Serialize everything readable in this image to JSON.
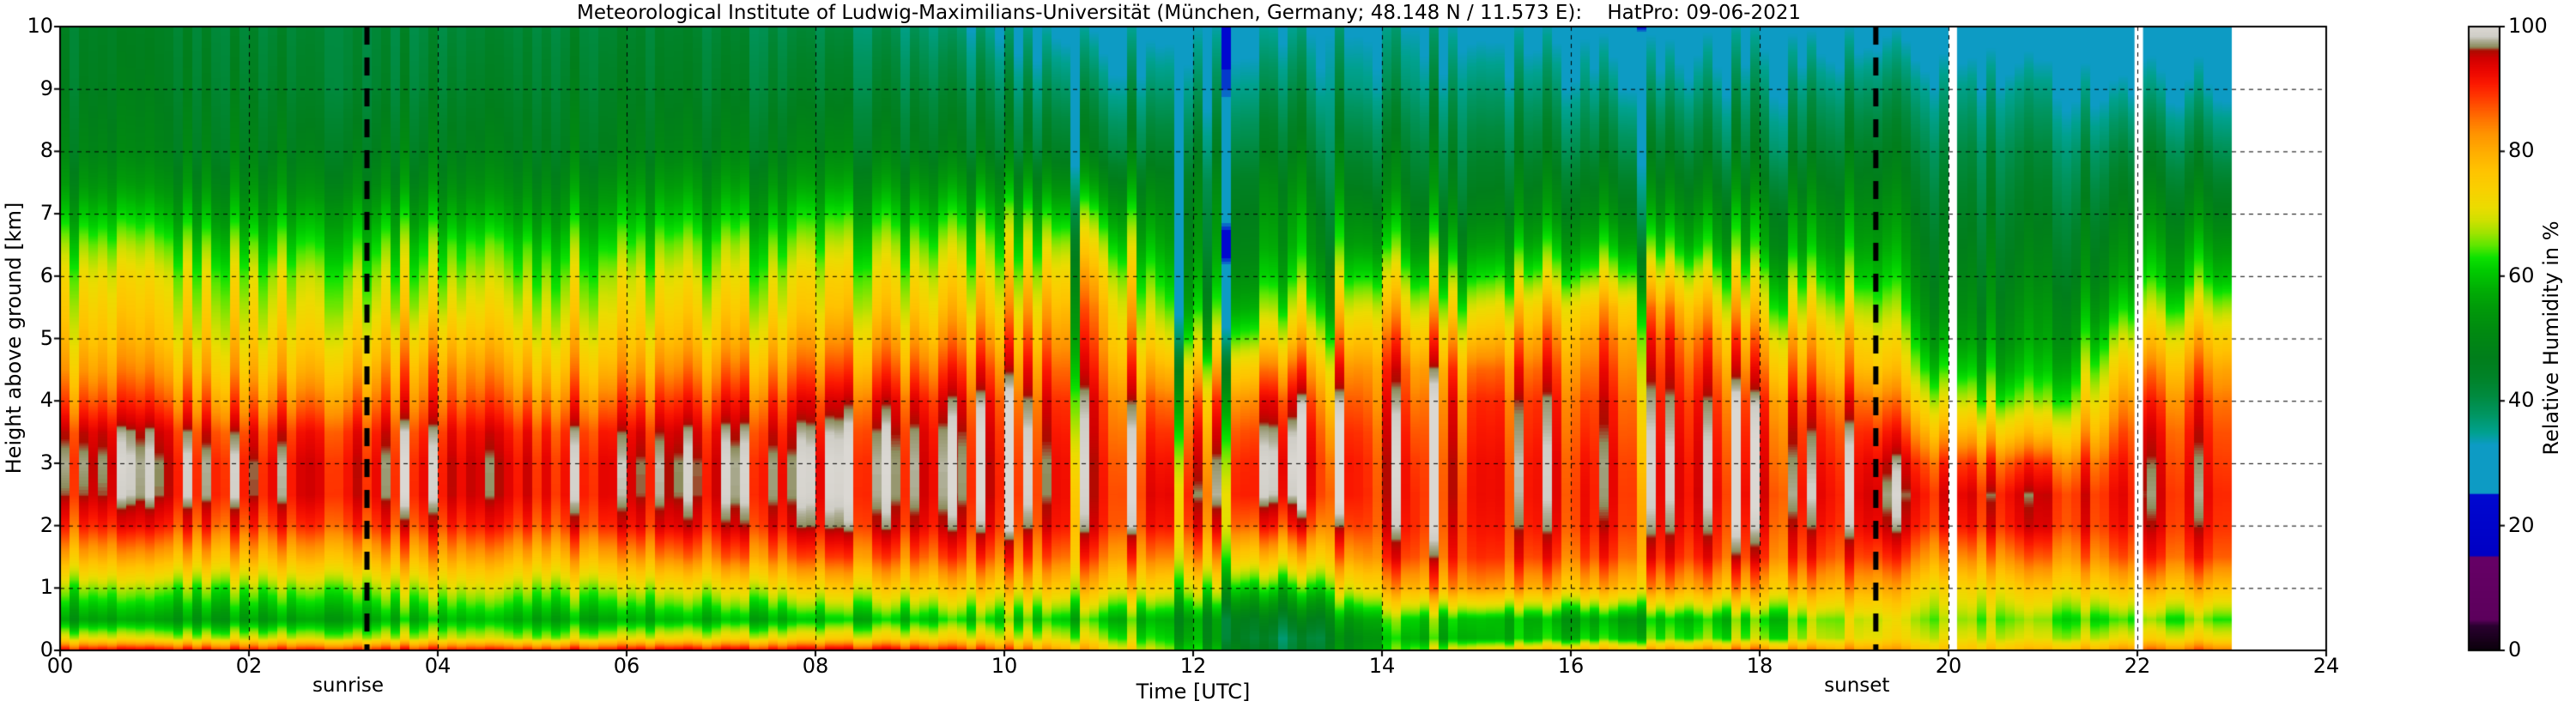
{
  "chart_data": {
    "type": "heatmap",
    "title": "Meteorological Institute of Ludwig-Maximilians-Universität (München, Germany; 48.148 N / 11.573 E):    HatPro: 09-06-2021",
    "xlabel": "Time [UTC]",
    "ylabel": "Height above ground [km]",
    "colorbar_label": "Relative Humidity in %",
    "xlim": [
      0,
      24
    ],
    "ylim": [
      0,
      10
    ],
    "clim": [
      0,
      100
    ],
    "grid": "dashed-black-on-top",
    "legend_position": "right-colorbar",
    "x_ticks": {
      "values": [
        0,
        2,
        4,
        6,
        8,
        10,
        12,
        14,
        16,
        18,
        20,
        22,
        24
      ],
      "labels": [
        "00",
        "02",
        "04",
        "06",
        "08",
        "10",
        "12",
        "14",
        "16",
        "18",
        "20",
        "22",
        "24"
      ]
    },
    "y_ticks": {
      "values": [
        0,
        1,
        2,
        3,
        4,
        5,
        6,
        7,
        8,
        9,
        10
      ],
      "labels": [
        "0",
        "1",
        "2",
        "3",
        "4",
        "5",
        "6",
        "7",
        "8",
        "9",
        "10"
      ]
    },
    "colorbar_ticks": {
      "values": [
        0,
        20,
        40,
        60,
        80,
        100
      ],
      "labels": [
        "0",
        "20",
        "40",
        "60",
        "80",
        "100"
      ]
    },
    "annotations": [
      {
        "label": "sunrise",
        "hour": 3.25
      },
      {
        "label": "sunset",
        "hour": 19.23
      }
    ],
    "data_gaps_hours": [
      [
        20.0,
        20.09
      ],
      [
        21.97,
        22.06
      ]
    ],
    "data_end_hour": 23.0,
    "colormap_stops": [
      [
        0,
        "#0a000a"
      ],
      [
        4,
        "#2a0030"
      ],
      [
        5,
        "#5c005c"
      ],
      [
        15,
        "#660066"
      ],
      [
        15.2,
        "#0000c4"
      ],
      [
        25,
        "#0008d0"
      ],
      [
        25.3,
        "#0d9bc4"
      ],
      [
        33,
        "#0d9bc4"
      ],
      [
        35,
        "#00a18f"
      ],
      [
        38,
        "#009560"
      ],
      [
        41,
        "#008a3e"
      ],
      [
        44,
        "#008227"
      ],
      [
        47,
        "#007e1b"
      ],
      [
        51,
        "#008911"
      ],
      [
        55,
        "#009a09"
      ],
      [
        58,
        "#00af04"
      ],
      [
        61,
        "#00cc00"
      ],
      [
        63,
        "#0ce200"
      ],
      [
        65,
        "#5fe600"
      ],
      [
        67,
        "#a0e300"
      ],
      [
        69,
        "#cfe000"
      ],
      [
        71,
        "#ebdc00"
      ],
      [
        74,
        "#f9d000"
      ],
      [
        77,
        "#ffc300"
      ],
      [
        80,
        "#ffad00"
      ],
      [
        83,
        "#ff9200"
      ],
      [
        85,
        "#ff7600"
      ],
      [
        87,
        "#ff5600"
      ],
      [
        89,
        "#ff3500"
      ],
      [
        91,
        "#fb1800"
      ],
      [
        93,
        "#ea0600"
      ],
      [
        95,
        "#d00000"
      ],
      [
        96.2,
        "#ab0c00"
      ],
      [
        96.8,
        "#8d8d5e"
      ],
      [
        97.8,
        "#aeae96"
      ],
      [
        98.4,
        "#cfcdc6"
      ],
      [
        100,
        "#dbd8d3"
      ]
    ],
    "hours": [
      0,
      1,
      2,
      3,
      4,
      5,
      6,
      7,
      8,
      9,
      10,
      11,
      12,
      13,
      14,
      15,
      16,
      17,
      18,
      19,
      20,
      21,
      22,
      23
    ],
    "heights_km": [
      0,
      0.2,
      0.5,
      1,
      1.5,
      2,
      2.5,
      3,
      3.5,
      4,
      4.5,
      5,
      5.5,
      6,
      6.5,
      7,
      7.5,
      8,
      9,
      10
    ],
    "rh_percent_by_hour": [
      [
        93,
        70,
        55,
        65,
        78,
        88,
        93,
        94,
        92,
        85,
        79,
        75,
        72,
        69,
        64,
        58,
        52,
        48,
        45,
        44
      ],
      [
        93,
        68,
        54,
        64,
        78,
        89,
        94,
        94,
        92,
        85,
        79,
        74,
        71,
        68,
        63,
        57,
        51,
        47,
        45,
        44
      ],
      [
        93,
        70,
        56,
        66,
        79,
        89,
        94,
        94,
        91,
        84,
        78,
        74,
        71,
        68,
        63,
        57,
        52,
        48,
        45,
        43
      ],
      [
        93,
        69,
        57,
        67,
        80,
        90,
        94,
        94,
        92,
        86,
        80,
        75,
        71,
        68,
        63,
        58,
        52,
        48,
        44,
        43
      ],
      [
        93,
        70,
        60,
        70,
        82,
        91,
        95,
        95,
        93,
        88,
        84,
        78,
        72,
        68,
        64,
        58,
        52,
        48,
        44,
        42
      ],
      [
        93,
        68,
        58,
        68,
        80,
        90,
        94,
        94,
        92,
        86,
        80,
        75,
        71,
        67,
        63,
        57,
        52,
        48,
        45,
        43
      ],
      [
        94,
        70,
        57,
        68,
        81,
        91,
        94,
        94,
        92,
        86,
        80,
        75,
        71,
        68,
        63,
        58,
        53,
        48,
        45,
        43
      ],
      [
        94,
        71,
        58,
        70,
        84,
        92,
        95,
        95,
        93,
        88,
        82,
        76,
        72,
        68,
        64,
        58,
        53,
        48,
        44,
        42
      ],
      [
        94,
        72,
        58,
        72,
        85,
        93,
        95,
        95,
        93,
        89,
        83,
        77,
        72,
        69,
        64,
        59,
        53,
        48,
        43,
        40
      ],
      [
        94,
        73,
        60,
        74,
        86,
        93,
        95,
        95,
        94,
        91,
        85,
        79,
        74,
        70,
        65,
        59,
        53,
        47,
        42,
        38
      ],
      [
        88,
        72,
        62,
        76,
        87,
        93,
        95,
        95,
        94,
        92,
        88,
        82,
        76,
        71,
        66,
        60,
        53,
        46,
        40,
        34
      ],
      [
        80,
        70,
        63,
        78,
        88,
        94,
        95,
        95,
        94,
        93,
        90,
        87,
        84,
        79,
        72,
        64,
        55,
        47,
        39,
        32
      ],
      [
        62,
        58,
        56,
        70,
        82,
        90,
        92,
        90,
        87,
        82,
        74,
        64,
        57,
        53,
        50,
        48,
        46,
        42,
        36,
        31
      ],
      [
        38,
        36,
        42,
        56,
        72,
        86,
        93,
        94,
        92,
        88,
        80,
        70,
        62,
        56,
        52,
        50,
        47,
        43,
        37,
        32
      ],
      [
        62,
        60,
        64,
        80,
        90,
        94,
        95,
        95,
        94,
        92,
        90,
        85,
        78,
        70,
        62,
        56,
        50,
        46,
        39,
        35
      ],
      [
        75,
        60,
        62,
        85,
        92,
        94,
        95,
        95,
        94,
        93,
        89,
        81,
        73,
        65,
        58,
        52,
        48,
        45,
        39,
        33
      ],
      [
        80,
        62,
        58,
        80,
        90,
        94,
        95,
        95,
        94,
        93,
        90,
        86,
        80,
        70,
        62,
        55,
        50,
        45,
        38,
        32
      ],
      [
        82,
        64,
        60,
        82,
        91,
        94,
        95,
        95,
        94,
        93,
        91,
        88,
        82,
        72,
        62,
        55,
        49,
        44,
        36,
        30
      ],
      [
        86,
        66,
        62,
        80,
        90,
        93,
        95,
        94,
        93,
        91,
        86,
        80,
        72,
        66,
        58,
        54,
        48,
        43,
        37,
        31
      ],
      [
        82,
        70,
        68,
        80,
        88,
        92,
        93,
        92,
        90,
        86,
        79,
        74,
        68,
        61,
        56,
        52,
        48,
        44,
        37,
        30
      ],
      [
        76,
        70,
        66,
        72,
        82,
        90,
        92,
        88,
        78,
        68,
        60,
        54,
        50,
        48,
        46,
        44,
        42,
        40,
        35,
        29
      ],
      [
        78,
        68,
        64,
        74,
        84,
        91,
        92,
        86,
        73,
        62,
        56,
        52,
        50,
        47,
        45,
        43,
        41,
        39,
        34,
        28
      ],
      [
        85,
        72,
        64,
        78,
        88,
        92,
        93,
        92,
        90,
        86,
        80,
        72,
        64,
        58,
        54,
        50,
        46,
        42,
        34,
        28
      ],
      [
        88,
        74,
        66,
        80,
        90,
        93,
        94,
        93,
        92,
        90,
        86,
        80,
        72,
        64,
        58,
        52,
        47,
        42,
        34,
        28
      ]
    ]
  }
}
